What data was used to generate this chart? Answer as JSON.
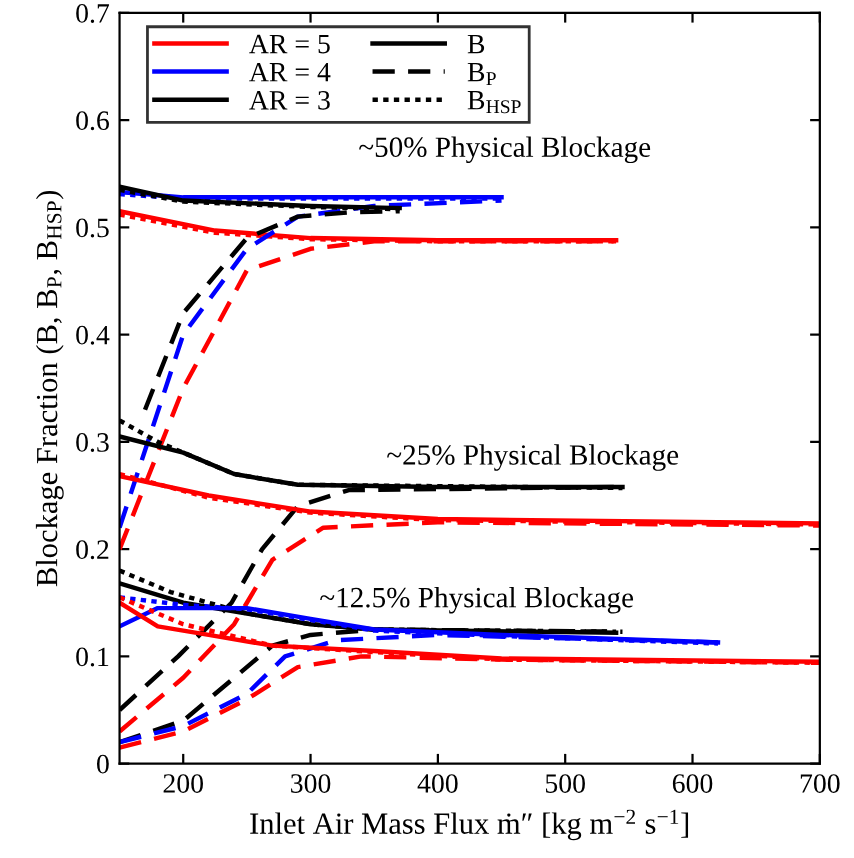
{
  "chart_data": {
    "type": "line",
    "xlabel": "Inlet Air Mass Flux ṁ″ [kg m$^{−2}$ s$^{−1}$]",
    "ylabel": "Blockage Fraction (B, B$_{P}$, B$_{HSP}$)",
    "xlim": [
      150,
      700
    ],
    "ylim": [
      0,
      0.7
    ],
    "xticks": [
      200,
      300,
      400,
      500,
      600,
      700
    ],
    "yticks": [
      0,
      0.1,
      0.2,
      0.3,
      0.4,
      0.5,
      0.6,
      0.7
    ],
    "grid": false,
    "legend": "top left",
    "marker": "none",
    "annotations": [
      "~50% Physical Blockage",
      "~25% Physical Blockage",
      "~12.5% Physical Blockage"
    ],
    "series": [
      {
        "name": "AR = 5",
        "color": "#ff0000",
        "line_style": "solid",
        "x": [
          150,
          225,
          300,
          400,
          540
        ],
        "values": [
          0.515,
          0.497,
          0.49,
          0.488,
          0.488
        ]
      },
      {
        "color": "#ff0000",
        "line_style": "dashed",
        "x": [
          150,
          200,
          250,
          300,
          350,
          450,
          540
        ],
        "values": [
          0.2,
          0.35,
          0.46,
          0.48,
          0.487,
          0.487,
          0.487
        ]
      },
      {
        "color": "#ff0000",
        "line_style": "dotted",
        "x": [
          150,
          225,
          300,
          400,
          540
        ],
        "values": [
          0.512,
          0.495,
          0.489,
          0.487,
          0.487
        ]
      },
      {
        "name": "AR = 4",
        "color": "#0000ff",
        "line_style": "solid",
        "x": [
          150,
          200,
          300,
          450
        ],
        "values": [
          0.533,
          0.528,
          0.528,
          0.528
        ]
      },
      {
        "color": "#0000ff",
        "line_style": "dashed",
        "x": [
          150,
          200,
          250,
          290,
          350,
          450
        ],
        "values": [
          0.22,
          0.4,
          0.48,
          0.51,
          0.52,
          0.525
        ]
      },
      {
        "color": "#0000ff",
        "line_style": "dotted",
        "x": [
          150,
          200,
          300,
          450
        ],
        "values": [
          0.531,
          0.527,
          0.527,
          0.527
        ]
      },
      {
        "name": "AR = 3",
        "color": "#000000",
        "line_style": "solid",
        "x": [
          150,
          200,
          300,
          370
        ],
        "values": [
          0.538,
          0.525,
          0.52,
          0.518
        ]
      },
      {
        "color": "#000000",
        "line_style": "dashed",
        "x": [
          170,
          200,
          250,
          290,
          330,
          370
        ],
        "values": [
          0.33,
          0.42,
          0.49,
          0.51,
          0.514,
          0.515
        ]
      },
      {
        "color": "#000000",
        "line_style": "dotted",
        "x": [
          150,
          200,
          300,
          370
        ],
        "values": [
          0.535,
          0.524,
          0.519,
          0.517
        ]
      },
      {
        "name": "B",
        "color": "#000000",
        "line_style": "solid",
        "x": [
          150,
          200,
          240,
          290,
          400,
          545
        ],
        "values": [
          0.305,
          0.29,
          0.27,
          0.26,
          0.258,
          0.258
        ]
      },
      {
        "name": "B$_{P}$",
        "color": "#000000",
        "line_style": "dashed",
        "x": [
          150,
          196,
          238,
          262,
          290,
          330,
          545
        ],
        "values": [
          0.05,
          0.1,
          0.15,
          0.2,
          0.24,
          0.255,
          0.258
        ]
      },
      {
        "name": "B$_{HSP}$",
        "color": "#000000",
        "line_style": "dotted",
        "x": [
          150,
          180,
          200,
          240,
          290,
          545
        ],
        "values": [
          0.32,
          0.3,
          0.29,
          0.27,
          0.26,
          0.257
        ]
      },
      {
        "color": "#ff0000",
        "line_style": "solid",
        "x": [
          150,
          220,
          300,
          400,
          700
        ],
        "values": [
          0.268,
          0.25,
          0.235,
          0.228,
          0.224
        ]
      },
      {
        "color": "#ff0000",
        "line_style": "dashed",
        "x": [
          150,
          200,
          240,
          270,
          310,
          400,
          700
        ],
        "values": [
          0.03,
          0.08,
          0.13,
          0.19,
          0.22,
          0.225,
          0.222
        ]
      },
      {
        "color": "#ff0000",
        "line_style": "dotted",
        "x": [
          150,
          220,
          300,
          400,
          700
        ],
        "values": [
          0.27,
          0.248,
          0.234,
          0.227,
          0.223
        ]
      },
      {
        "color": "#000000",
        "line_style": "solid",
        "x": [
          150,
          200,
          250,
          300,
          350,
          540
        ],
        "values": [
          0.168,
          0.15,
          0.14,
          0.13,
          0.125,
          0.122
        ]
      },
      {
        "color": "#000000",
        "line_style": "dashed",
        "x": [
          150,
          200,
          240,
          270,
          300,
          350,
          545
        ],
        "values": [
          0.02,
          0.04,
          0.08,
          0.11,
          0.12,
          0.125,
          0.123
        ]
      },
      {
        "color": "#000000",
        "line_style": "dotted",
        "x": [
          150,
          190,
          250,
          300,
          350,
          540
        ],
        "values": [
          0.18,
          0.16,
          0.14,
          0.13,
          0.125,
          0.123
        ]
      },
      {
        "color": "#0000ff",
        "line_style": "solid",
        "x": [
          150,
          180,
          250,
          300,
          350,
          450,
          620
        ],
        "values": [
          0.128,
          0.145,
          0.145,
          0.135,
          0.125,
          0.12,
          0.113
        ]
      },
      {
        "color": "#0000ff",
        "line_style": "dashed",
        "x": [
          150,
          200,
          250,
          280,
          320,
          400,
          620
        ],
        "values": [
          0.02,
          0.035,
          0.065,
          0.1,
          0.115,
          0.12,
          0.113
        ]
      },
      {
        "color": "#0000ff",
        "line_style": "dotted",
        "x": [
          150,
          200,
          250,
          300,
          350,
          450,
          620
        ],
        "values": [
          0.155,
          0.148,
          0.144,
          0.134,
          0.124,
          0.119,
          0.112
        ]
      },
      {
        "color": "#ff0000",
        "line_style": "solid",
        "x": [
          150,
          180,
          220,
          270,
          350,
          450,
          700
        ],
        "values": [
          0.15,
          0.128,
          0.12,
          0.11,
          0.105,
          0.098,
          0.095
        ]
      },
      {
        "color": "#ff0000",
        "line_style": "dashed",
        "x": [
          150,
          200,
          250,
          290,
          340,
          450,
          700
        ],
        "values": [
          0.015,
          0.03,
          0.06,
          0.09,
          0.1,
          0.097,
          0.094
        ]
      },
      {
        "color": "#ff0000",
        "line_style": "dotted",
        "x": [
          150,
          200,
          270,
          350,
          450,
          700
        ],
        "values": [
          0.155,
          0.13,
          0.11,
          0.104,
          0.097,
          0.094
        ]
      }
    ]
  }
}
